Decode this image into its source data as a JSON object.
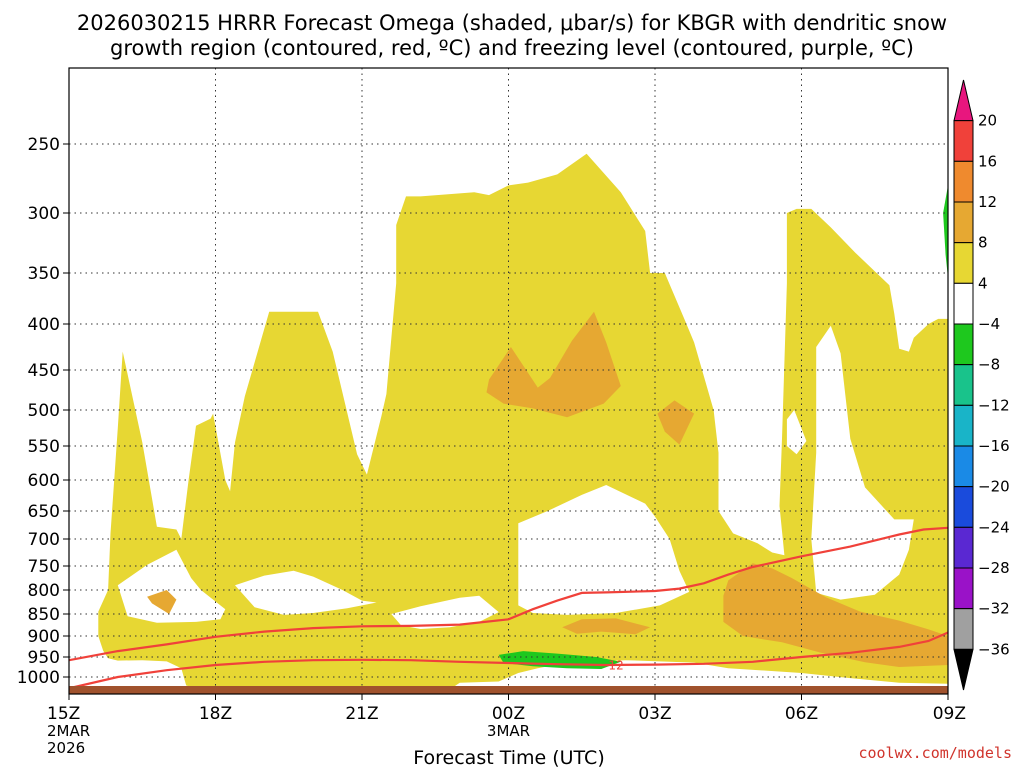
{
  "chart_data": {
    "type": "heatmap",
    "title_line1": "2026030215 HRRR Forecast Omega (shaded, μbar/s) for KBGR with dendritic snow",
    "title_line2": "growth region (contoured, red, ºC) and freezing level (contoured, purple, ºC)",
    "xlabel": "Forecast Time (UTC)",
    "credit": "coolwx.com/models",
    "x_ticks": [
      {
        "hour": 0,
        "label": "15Z",
        "sub1": "2MAR",
        "sub2": "2026"
      },
      {
        "hour": 3,
        "label": "18Z",
        "sub1": "",
        "sub2": ""
      },
      {
        "hour": 6,
        "label": "21Z",
        "sub1": "",
        "sub2": ""
      },
      {
        "hour": 9,
        "label": "00Z",
        "sub1": "3MAR",
        "sub2": ""
      },
      {
        "hour": 12,
        "label": "03Z",
        "sub1": "",
        "sub2": ""
      },
      {
        "hour": 15,
        "label": "06Z",
        "sub1": "",
        "sub2": ""
      },
      {
        "hour": 18,
        "label": "09Z",
        "sub1": "",
        "sub2": ""
      }
    ],
    "y_ticks": [
      250,
      300,
      350,
      400,
      450,
      500,
      550,
      600,
      650,
      700,
      750,
      800,
      850,
      900,
      950,
      1000
    ],
    "xlim": [
      0,
      18
    ],
    "ylim_hPa": [
      1030,
      200
    ],
    "colorbar": {
      "labels": [
        "20",
        "16",
        "12",
        "8",
        "4",
        "−4",
        "−8",
        "−12",
        "−16",
        "−20",
        "−24",
        "−28",
        "−32",
        "−36"
      ],
      "colors": [
        "#e8167e",
        "#f0413a",
        "#ef8a2e",
        "#e6a832",
        "#e7d733",
        "#ffffff",
        "#1ec81e",
        "#19c38b",
        "#19b4c8",
        "#1a8ae6",
        "#1a4bdc",
        "#5a28d2",
        "#9a12c8",
        "#a0a0a0",
        "#000000"
      ]
    },
    "omega_regions": [
      {
        "range": "4 to 8",
        "color": "#e7d733",
        "points": [
          [
            0.6,
            845
          ],
          [
            0.8,
            800
          ],
          [
            0.85,
            690
          ],
          [
            1.0,
            525
          ],
          [
            1.1,
            430
          ],
          [
            1.5,
            545
          ],
          [
            1.8,
            678
          ],
          [
            2.2,
            683
          ],
          [
            2.3,
            700
          ],
          [
            2.45,
            600
          ],
          [
            2.6,
            522
          ],
          [
            2.9,
            512
          ],
          [
            2.95,
            505
          ],
          [
            3.2,
            600
          ],
          [
            3.3,
            618
          ],
          [
            3.4,
            545
          ],
          [
            3.6,
            483
          ],
          [
            4.1,
            388
          ],
          [
            5.1,
            388
          ],
          [
            5.4,
            430
          ],
          [
            5.9,
            562
          ],
          [
            6.1,
            592
          ],
          [
            6.4,
            508
          ],
          [
            6.5,
            480
          ],
          [
            6.7,
            360
          ],
          [
            6.7,
            310
          ],
          [
            6.9,
            288
          ],
          [
            7.2,
            288
          ],
          [
            8.3,
            285
          ],
          [
            8.6,
            287
          ],
          [
            9.0,
            280
          ],
          [
            9.4,
            278
          ],
          [
            10.0,
            272
          ],
          [
            10.6,
            257
          ],
          [
            11.3,
            285
          ],
          [
            11.8,
            315
          ],
          [
            11.9,
            350
          ],
          [
            12.2,
            350
          ],
          [
            12.6,
            395
          ],
          [
            12.8,
            420
          ],
          [
            13.2,
            500
          ],
          [
            13.3,
            560
          ],
          [
            13.3,
            650
          ],
          [
            13.6,
            690
          ],
          [
            14.1,
            708
          ],
          [
            14.4,
            725
          ],
          [
            14.65,
            730
          ],
          [
            14.55,
            642
          ],
          [
            14.6,
            540
          ],
          [
            14.7,
            360
          ],
          [
            14.7,
            300
          ],
          [
            14.9,
            297
          ],
          [
            15.2,
            297
          ],
          [
            15.6,
            312
          ],
          [
            16.1,
            333
          ],
          [
            16.8,
            362
          ],
          [
            16.9,
            390
          ],
          [
            17.0,
            427
          ],
          [
            17.2,
            430
          ],
          [
            17.3,
            415
          ],
          [
            17.6,
            400
          ],
          [
            17.8,
            395
          ],
          [
            18.0,
            395
          ],
          [
            18.0,
            1012
          ],
          [
            17.0,
            1010
          ],
          [
            16.0,
            1002
          ],
          [
            15.0,
            990
          ],
          [
            13.5,
            978
          ],
          [
            12.8,
            964
          ],
          [
            11.4,
            958
          ],
          [
            10.2,
            964
          ],
          [
            9.6,
            978
          ],
          [
            9.2,
            990
          ],
          [
            8.8,
            1008
          ],
          [
            8.0,
            1010
          ],
          [
            7.8,
            1022
          ],
          [
            7.3,
            1024
          ],
          [
            6.4,
            1018
          ],
          [
            5.6,
            1018
          ],
          [
            4.8,
            1022
          ],
          [
            4.0,
            1022
          ],
          [
            3.4,
            1025
          ],
          [
            3.0,
            1022
          ],
          [
            2.6,
            1020
          ],
          [
            2.4,
            1015
          ],
          [
            2.3,
            978
          ],
          [
            2.0,
            961
          ],
          [
            1.5,
            958
          ],
          [
            1.0,
            959
          ],
          [
            0.8,
            953
          ],
          [
            0.7,
            935
          ],
          [
            0.6,
            900
          ]
        ]
      },
      {
        "range": "white gap",
        "color": "#ffffff",
        "points": [
          [
            1.0,
            790
          ],
          [
            1.6,
            748
          ],
          [
            2.2,
            720
          ],
          [
            2.5,
            775
          ],
          [
            2.7,
            800
          ],
          [
            3.2,
            840
          ],
          [
            3.1,
            862
          ],
          [
            2.6,
            868
          ],
          [
            1.8,
            870
          ],
          [
            1.2,
            855
          ]
        ]
      },
      {
        "range": "white gap",
        "color": "#ffffff",
        "points": [
          [
            3.4,
            790
          ],
          [
            4.0,
            770
          ],
          [
            4.6,
            760
          ],
          [
            5.0,
            772
          ],
          [
            5.6,
            800
          ],
          [
            6.0,
            822
          ],
          [
            6.3,
            826
          ],
          [
            5.7,
            838
          ],
          [
            5.0,
            848
          ],
          [
            4.4,
            852
          ],
          [
            3.8,
            836
          ]
        ]
      },
      {
        "range": "white gap",
        "color": "#ffffff",
        "points": [
          [
            9.2,
            672
          ],
          [
            9.8,
            650
          ],
          [
            10.5,
            624
          ],
          [
            11.0,
            608
          ],
          [
            11.8,
            638
          ],
          [
            12.0,
            660
          ],
          [
            12.3,
            700
          ],
          [
            12.5,
            760
          ],
          [
            12.7,
            804
          ],
          [
            12.1,
            832
          ],
          [
            11.2,
            848
          ],
          [
            10.2,
            852
          ],
          [
            9.5,
            848
          ],
          [
            9.2,
            832
          ],
          [
            9.2,
            760
          ]
        ]
      },
      {
        "range": "white gap",
        "color": "#ffffff",
        "points": [
          [
            6.6,
            850
          ],
          [
            7.2,
            834
          ],
          [
            8.0,
            816
          ],
          [
            8.4,
            812
          ],
          [
            8.8,
            846
          ],
          [
            8.4,
            868
          ],
          [
            7.8,
            880
          ],
          [
            7.2,
            884
          ],
          [
            6.8,
            876
          ]
        ]
      },
      {
        "range": "white gap",
        "color": "#ffffff",
        "points": [
          [
            15.3,
            425
          ],
          [
            15.6,
            402
          ],
          [
            15.8,
            432
          ],
          [
            16.0,
            540
          ],
          [
            16.3,
            612
          ],
          [
            16.9,
            665
          ],
          [
            17.3,
            665
          ],
          [
            17.2,
            720
          ],
          [
            17.0,
            768
          ],
          [
            16.5,
            810
          ],
          [
            15.8,
            820
          ],
          [
            15.3,
            806
          ],
          [
            15.2,
            700
          ],
          [
            15.3,
            560
          ]
        ]
      },
      {
        "range": "white gap",
        "color": "#ffffff",
        "points": [
          [
            14.7,
            513
          ],
          [
            14.85,
            500
          ],
          [
            15.1,
            543
          ],
          [
            14.9,
            562
          ],
          [
            14.7,
            550
          ]
        ]
      },
      {
        "range": "8 to 12",
        "color": "#e6a832",
        "points": [
          [
            8.6,
            462
          ],
          [
            9.05,
            425
          ],
          [
            9.6,
            472
          ],
          [
            9.85,
            460
          ],
          [
            10.3,
            418
          ],
          [
            10.75,
            388
          ],
          [
            11.0,
            420
          ],
          [
            11.3,
            470
          ],
          [
            10.95,
            492
          ],
          [
            10.2,
            510
          ],
          [
            9.5,
            498
          ],
          [
            8.9,
            492
          ],
          [
            8.55,
            478
          ]
        ]
      },
      {
        "range": "8 to 12",
        "color": "#e6a832",
        "points": [
          [
            12.05,
            505
          ],
          [
            12.4,
            488
          ],
          [
            12.8,
            505
          ],
          [
            12.5,
            548
          ],
          [
            12.2,
            530
          ]
        ]
      },
      {
        "range": "8 to 12",
        "color": "#e6a832",
        "points": [
          [
            1.6,
            814
          ],
          [
            2.0,
            800
          ],
          [
            2.2,
            820
          ],
          [
            2.05,
            850
          ],
          [
            1.7,
            828
          ]
        ]
      },
      {
        "range": "8 to 12",
        "color": "#e6a832",
        "points": [
          [
            10.1,
            880
          ],
          [
            10.5,
            862
          ],
          [
            11.2,
            860
          ],
          [
            11.9,
            880
          ],
          [
            11.6,
            896
          ],
          [
            10.9,
            890
          ],
          [
            10.4,
            895
          ]
        ]
      },
      {
        "range": "8 to 12",
        "color": "#e6a832",
        "points": [
          [
            13.4,
            812
          ],
          [
            13.5,
            780
          ],
          [
            14.0,
            745
          ],
          [
            14.4,
            755
          ],
          [
            14.8,
            775
          ],
          [
            15.5,
            815
          ],
          [
            16.2,
            845
          ],
          [
            17.0,
            865
          ],
          [
            17.6,
            885
          ],
          [
            18.0,
            900
          ],
          [
            18.0,
            970
          ],
          [
            17.0,
            975
          ],
          [
            16.3,
            963
          ],
          [
            15.4,
            940
          ],
          [
            14.6,
            915
          ],
          [
            13.8,
            900
          ],
          [
            13.4,
            868
          ]
        ]
      },
      {
        "range": "-4 to -8",
        "color": "#1ec81e",
        "points": [
          [
            8.8,
            945
          ],
          [
            9.3,
            936
          ],
          [
            10.0,
            942
          ],
          [
            10.8,
            950
          ],
          [
            11.3,
            962
          ],
          [
            10.9,
            980
          ],
          [
            10.2,
            978
          ],
          [
            9.5,
            973
          ],
          [
            8.9,
            965
          ]
        ]
      },
      {
        "range": "-4 to -8",
        "color": "#1ec81e",
        "points": [
          [
            18.0,
            280
          ],
          [
            17.9,
            300
          ],
          [
            17.95,
            335
          ],
          [
            18.0,
            355
          ]
        ]
      }
    ],
    "dgz_contours": [
      {
        "label": "",
        "points": [
          [
            0,
            958
          ],
          [
            1,
            936
          ],
          [
            2,
            920
          ],
          [
            3,
            902
          ],
          [
            4,
            890
          ],
          [
            5,
            882
          ],
          [
            6,
            878
          ],
          [
            7,
            877
          ],
          [
            8,
            874
          ],
          [
            9,
            862
          ],
          [
            9.5,
            840
          ],
          [
            10,
            822
          ],
          [
            10.5,
            806
          ],
          [
            11,
            805
          ],
          [
            12,
            802
          ],
          [
            12.5,
            797
          ],
          [
            13,
            786
          ],
          [
            13.5,
            768
          ],
          [
            14,
            752
          ],
          [
            15,
            732
          ],
          [
            16,
            714
          ],
          [
            17,
            692
          ],
          [
            17.5,
            683
          ],
          [
            18,
            680
          ]
        ]
      },
      {
        "label": "−12",
        "points": [
          [
            0,
            1020
          ],
          [
            1,
            1000
          ],
          [
            2,
            983
          ],
          [
            3,
            970
          ],
          [
            4,
            962
          ],
          [
            5,
            958
          ],
          [
            6,
            957
          ],
          [
            7,
            958
          ],
          [
            8,
            962
          ],
          [
            9,
            965
          ],
          [
            10,
            968
          ],
          [
            11,
            970
          ],
          [
            12,
            969
          ],
          [
            13,
            967
          ],
          [
            14,
            962
          ],
          [
            15,
            950
          ],
          [
            16,
            940
          ],
          [
            17,
            926
          ],
          [
            17.6,
            912
          ],
          [
            18,
            892
          ]
        ]
      }
    ]
  }
}
